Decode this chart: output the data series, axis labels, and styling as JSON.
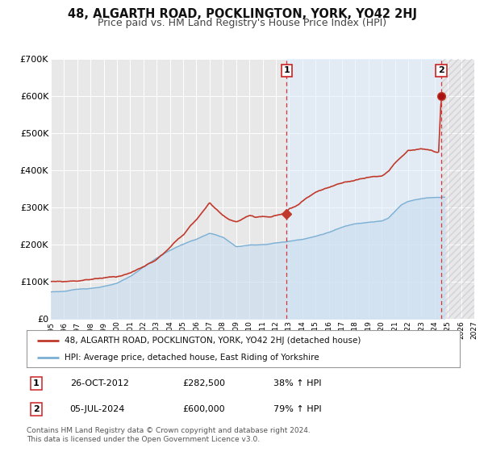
{
  "title": "48, ALGARTH ROAD, POCKLINGTON, YORK, YO42 2HJ",
  "subtitle": "Price paid vs. HM Land Registry's House Price Index (HPI)",
  "xlim": [
    1995,
    2027
  ],
  "ylim": [
    0,
    700000
  ],
  "yticks": [
    0,
    100000,
    200000,
    300000,
    400000,
    500000,
    600000,
    700000
  ],
  "ytick_labels": [
    "£0",
    "£100K",
    "£200K",
    "£300K",
    "£400K",
    "£500K",
    "£600K",
    "£700K"
  ],
  "xticks": [
    1995,
    1996,
    1997,
    1998,
    1999,
    2000,
    2001,
    2002,
    2003,
    2004,
    2005,
    2006,
    2007,
    2008,
    2009,
    2010,
    2011,
    2012,
    2013,
    2014,
    2015,
    2016,
    2017,
    2018,
    2019,
    2020,
    2021,
    2022,
    2023,
    2024,
    2025,
    2026,
    2027
  ],
  "background_color": "#ffffff",
  "plot_bg_color": "#e8e8e8",
  "grid_color": "#ffffff",
  "hpi_color": "#7bafd4",
  "hpi_fill_color": "#c8ddf0",
  "hpi_fill_alpha": 0.6,
  "price_color": "#c0392b",
  "marker1_x": 2012.82,
  "marker1_y": 282500,
  "marker2_x": 2024.51,
  "marker2_y": 600000,
  "vline1_x": 2012.82,
  "vline2_x": 2024.51,
  "shade_between_vlines_color": "#ddeeff",
  "shade_alpha": 0.5,
  "legend_price_label": "48, ALGARTH ROAD, POCKLINGTON, YORK, YO42 2HJ (detached house)",
  "legend_hpi_label": "HPI: Average price, detached house, East Riding of Yorkshire",
  "table_row1": [
    "1",
    "26-OCT-2012",
    "£282,500",
    "38% ↑ HPI"
  ],
  "table_row2": [
    "2",
    "05-JUL-2024",
    "£600,000",
    "79% ↑ HPI"
  ],
  "footer": "Contains HM Land Registry data © Crown copyright and database right 2024.\nThis data is licensed under the Open Government Licence v3.0.",
  "title_fontsize": 10.5,
  "subtitle_fontsize": 9,
  "ann_fontsize": 8,
  "legend_fontsize": 7.5,
  "table_fontsize": 8,
  "footer_fontsize": 6.5
}
